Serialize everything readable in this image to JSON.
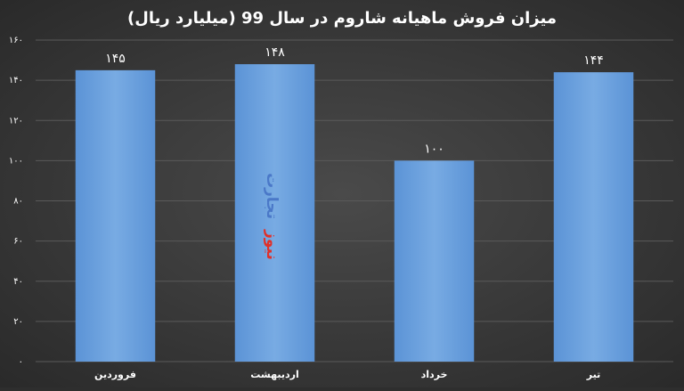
{
  "chart_data": {
    "type": "bar",
    "title": "میزان فروش ماهیانه شاروم در سال 99 (میلیارد ریال)",
    "categories": [
      "فروردین",
      "اردیبهشت",
      "خرداد",
      "تیر"
    ],
    "values": [
      145,
      148,
      100,
      144
    ],
    "value_labels": [
      "۱۴۵",
      "۱۴۸",
      "۱۰۰",
      "۱۴۴"
    ],
    "color": "#6a9fdc",
    "ylim": [
      0,
      160
    ],
    "yticks": [
      {
        "value": 0,
        "label": "۰"
      },
      {
        "value": 20,
        "label": "۲۰"
      },
      {
        "value": 40,
        "label": "۴۰"
      },
      {
        "value": 60,
        "label": "۶۰"
      },
      {
        "value": 80,
        "label": "۸۰"
      },
      {
        "value": 100,
        "label": "۱۰۰"
      },
      {
        "value": 120,
        "label": "۱۲۰"
      },
      {
        "value": 140,
        "label": "۱۴۰"
      },
      {
        "value": 160,
        "label": "۱۶۰"
      }
    ],
    "grid": true,
    "watermark": {
      "brand": "تجارت",
      "suffix": "نیوز"
    }
  }
}
